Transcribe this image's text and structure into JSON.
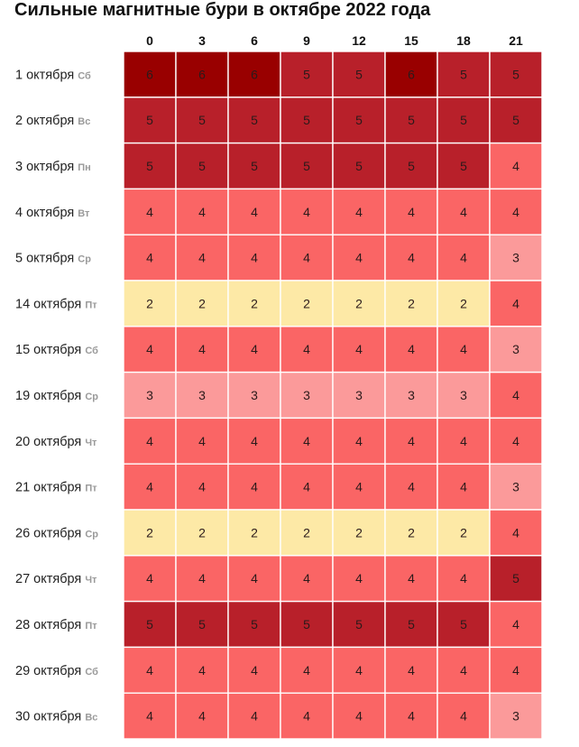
{
  "chart_data": {
    "type": "heatmap",
    "title": "Сильные магнитные бури в октябре 2022 года",
    "columns": [
      "0",
      "3",
      "6",
      "9",
      "12",
      "15",
      "18",
      "21"
    ],
    "rows": [
      {
        "date": "1 октября",
        "day": "Сб",
        "values": [
          6,
          6,
          6,
          5,
          5,
          6,
          5,
          5
        ]
      },
      {
        "date": "2 октября",
        "day": "Вс",
        "values": [
          5,
          5,
          5,
          5,
          5,
          5,
          5,
          5
        ]
      },
      {
        "date": "3 октября",
        "day": "Пн",
        "values": [
          5,
          5,
          5,
          5,
          5,
          5,
          5,
          4
        ]
      },
      {
        "date": "4 октября",
        "day": "Вт",
        "values": [
          4,
          4,
          4,
          4,
          4,
          4,
          4,
          4
        ]
      },
      {
        "date": "5 октября",
        "day": "Ср",
        "values": [
          4,
          4,
          4,
          4,
          4,
          4,
          4,
          3
        ]
      },
      {
        "date": "14 октября",
        "day": "Пт",
        "values": [
          2,
          2,
          2,
          2,
          2,
          2,
          2,
          4
        ]
      },
      {
        "date": "15 октября",
        "day": "Сб",
        "values": [
          4,
          4,
          4,
          4,
          4,
          4,
          4,
          3
        ]
      },
      {
        "date": "19 октября",
        "day": "Ср",
        "values": [
          3,
          3,
          3,
          3,
          3,
          3,
          3,
          4
        ]
      },
      {
        "date": "20 октября",
        "day": "Чт",
        "values": [
          4,
          4,
          4,
          4,
          4,
          4,
          4,
          4
        ]
      },
      {
        "date": "21 октября",
        "day": "Пт",
        "values": [
          4,
          4,
          4,
          4,
          4,
          4,
          4,
          3
        ]
      },
      {
        "date": "26 октября",
        "day": "Ср",
        "values": [
          2,
          2,
          2,
          2,
          2,
          2,
          2,
          4
        ]
      },
      {
        "date": "27 октября",
        "day": "Чт",
        "values": [
          4,
          4,
          4,
          4,
          4,
          4,
          4,
          5
        ]
      },
      {
        "date": "28 октября",
        "day": "Пт",
        "values": [
          5,
          5,
          5,
          5,
          5,
          5,
          5,
          4
        ]
      },
      {
        "date": "29 октября",
        "day": "Сб",
        "values": [
          4,
          4,
          4,
          4,
          4,
          4,
          4,
          4
        ]
      },
      {
        "date": "30 октября",
        "day": "Вс",
        "values": [
          4,
          4,
          4,
          4,
          4,
          4,
          4,
          3
        ]
      }
    ],
    "colors": {
      "2": "#fde9a6",
      "3": "#fb9a9a",
      "4": "#fa6565",
      "5": "#b8202a",
      "6": "#990000"
    },
    "grid_color": "#ffffff"
  }
}
